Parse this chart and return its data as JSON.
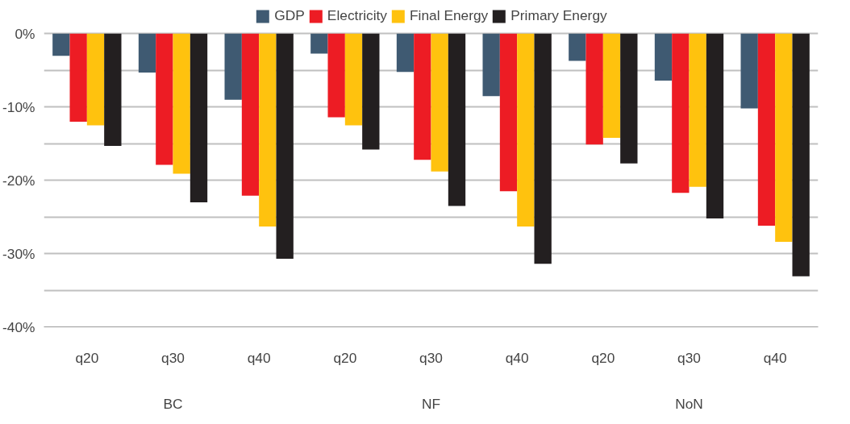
{
  "chart_data": {
    "type": "bar",
    "categories": [
      "q20",
      "q30",
      "q40",
      "q20",
      "q30",
      "q40",
      "q20",
      "q30",
      "q40"
    ],
    "series": [
      {
        "name": "GDP",
        "color": "#3f5a72",
        "values": [
          -3.0,
          -5.3,
          -9.0,
          -2.7,
          -5.2,
          -8.5,
          -3.7,
          -6.4,
          -10.2
        ]
      },
      {
        "name": "Electricity",
        "color": "#ed1c24",
        "values": [
          -12.0,
          -17.9,
          -22.1,
          -11.4,
          -17.2,
          -21.5,
          -15.1,
          -21.7,
          -26.2
        ]
      },
      {
        "name": "Final Energy",
        "color": "#ffc20e",
        "values": [
          -12.5,
          -19.1,
          -26.3,
          -12.5,
          -18.8,
          -26.3,
          -14.2,
          -20.9,
          -28.4
        ]
      },
      {
        "name": "Primary Energy",
        "color": "#231f20",
        "values": [
          -15.3,
          -23.0,
          -30.7,
          -15.8,
          -23.5,
          -31.4,
          -17.7,
          -25.2,
          -33.1
        ]
      }
    ],
    "ylim": [
      -40,
      0
    ],
    "yticks": [
      {
        "value": 0,
        "label": "0%"
      },
      {
        "value": -5,
        "label": null
      },
      {
        "value": -10,
        "label": "-10%"
      },
      {
        "value": -15,
        "label": null
      },
      {
        "value": -20,
        "label": "-20%"
      },
      {
        "value": -25,
        "label": null
      },
      {
        "value": -30,
        "label": "-30%"
      },
      {
        "value": -35,
        "label": null
      },
      {
        "value": -40,
        "label": "-40%"
      }
    ],
    "annotations": [
      "BC",
      "NF",
      "NoN"
    ],
    "grid": "y",
    "legend": "top"
  }
}
